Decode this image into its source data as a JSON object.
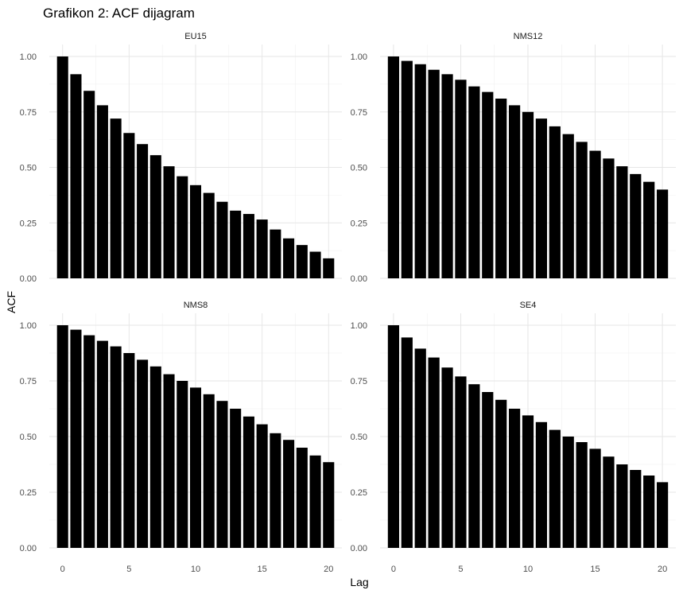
{
  "chart_data": {
    "type": "bar",
    "title": "Grafikon 2: ACF dijagram",
    "xlabel": "Lag",
    "ylabel": "ACF",
    "xlim": [
      -1,
      21
    ],
    "ylim": [
      0,
      1
    ],
    "x_ticks": [
      0,
      5,
      10,
      15,
      20
    ],
    "y_ticks": [
      0.0,
      0.25,
      0.5,
      0.75,
      1.0
    ],
    "y_tick_labels": [
      "0.00",
      "0.25",
      "0.50",
      "0.75",
      "1.00"
    ],
    "bar_color": "#000000",
    "grid": true,
    "panels": [
      {
        "name": "EU15",
        "lags": [
          0,
          1,
          2,
          3,
          4,
          5,
          6,
          7,
          8,
          9,
          10,
          11,
          12,
          13,
          14,
          15,
          16,
          17,
          18,
          19,
          20
        ],
        "values": [
          1.0,
          0.92,
          0.845,
          0.78,
          0.72,
          0.655,
          0.605,
          0.555,
          0.505,
          0.46,
          0.42,
          0.385,
          0.345,
          0.305,
          0.29,
          0.265,
          0.22,
          0.18,
          0.15,
          0.12,
          0.09
        ]
      },
      {
        "name": "NMS12",
        "lags": [
          0,
          1,
          2,
          3,
          4,
          5,
          6,
          7,
          8,
          9,
          10,
          11,
          12,
          13,
          14,
          15,
          16,
          17,
          18,
          19,
          20
        ],
        "values": [
          1.0,
          0.98,
          0.965,
          0.94,
          0.92,
          0.895,
          0.865,
          0.84,
          0.81,
          0.78,
          0.75,
          0.72,
          0.685,
          0.65,
          0.615,
          0.575,
          0.54,
          0.505,
          0.47,
          0.435,
          0.4
        ]
      },
      {
        "name": "NMS8",
        "lags": [
          0,
          1,
          2,
          3,
          4,
          5,
          6,
          7,
          8,
          9,
          10,
          11,
          12,
          13,
          14,
          15,
          16,
          17,
          18,
          19,
          20
        ],
        "values": [
          1.0,
          0.98,
          0.955,
          0.93,
          0.905,
          0.875,
          0.845,
          0.815,
          0.78,
          0.75,
          0.72,
          0.69,
          0.66,
          0.625,
          0.59,
          0.555,
          0.515,
          0.485,
          0.45,
          0.415,
          0.385
        ]
      },
      {
        "name": "SE4",
        "lags": [
          0,
          1,
          2,
          3,
          4,
          5,
          6,
          7,
          8,
          9,
          10,
          11,
          12,
          13,
          14,
          15,
          16,
          17,
          18,
          19,
          20
        ],
        "values": [
          1.0,
          0.945,
          0.895,
          0.855,
          0.81,
          0.77,
          0.735,
          0.7,
          0.665,
          0.625,
          0.595,
          0.565,
          0.53,
          0.5,
          0.475,
          0.445,
          0.41,
          0.375,
          0.35,
          0.325,
          0.295
        ]
      }
    ]
  }
}
